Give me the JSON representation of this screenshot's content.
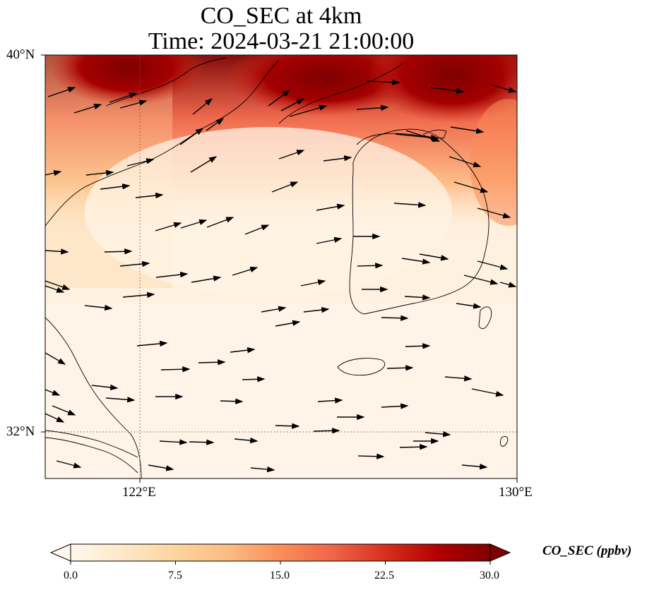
{
  "title": {
    "line1": "CO_SEC at 4km",
    "line2": "Time: 2024-03-21 21:00:00"
  },
  "map": {
    "extent": {
      "lon_min": 120,
      "lon_max": 130,
      "lat_min": 31,
      "lat_max": 40
    },
    "lat_ticks": [
      {
        "value": 32,
        "label": "32°N"
      },
      {
        "value": 40,
        "label": "40°N"
      }
    ],
    "lon_ticks": [
      {
        "value": 122,
        "label": "122°E"
      },
      {
        "value": 130,
        "label": "130°E"
      }
    ],
    "gridlines": {
      "style": "dotted",
      "lat": [
        32
      ],
      "lon": [
        122
      ]
    },
    "field": "CO_SEC concentration, high (dark red) along the northern edge, low (cream) over the sea and Korea",
    "overlay": "wind vectors, predominantly westerly to west-south-westerly"
  },
  "colorbar": {
    "title": "CO_SEC (ppbv)",
    "min": 0,
    "max": 30,
    "extend": "both",
    "ticks": [
      {
        "value": 0,
        "label": "0.0"
      },
      {
        "value": 7.5,
        "label": "7.5"
      },
      {
        "value": 15,
        "label": "15.0"
      },
      {
        "value": 22.5,
        "label": "22.5"
      },
      {
        "value": 30,
        "label": "30.0"
      }
    ],
    "colormap": [
      "#fff7ec",
      "#fee8c8",
      "#fdd49e",
      "#fdbb84",
      "#fc8d59",
      "#ef6548",
      "#d7301f",
      "#b30000",
      "#7f0000"
    ]
  }
}
